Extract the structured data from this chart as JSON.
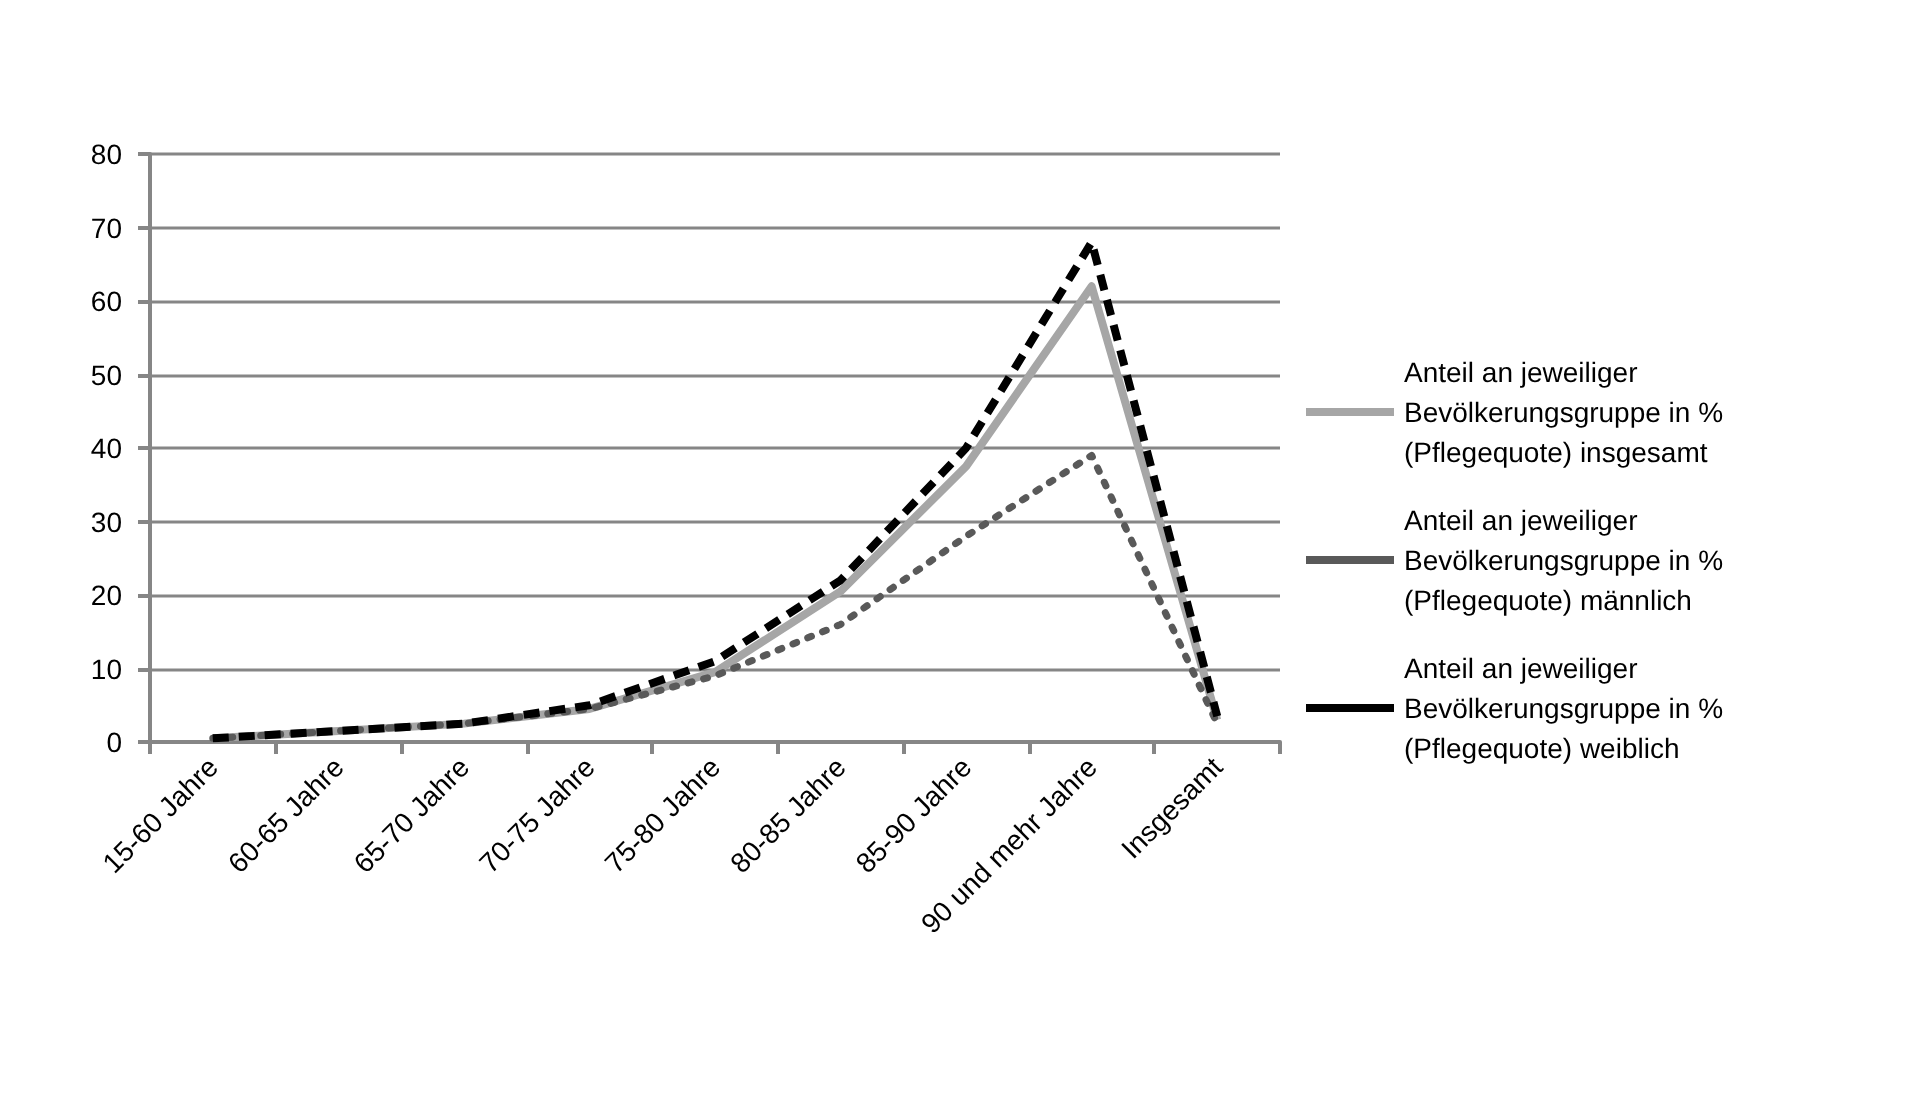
{
  "chart_data": {
    "type": "line",
    "categories": [
      "15-60 Jahre",
      "60-65 Jahre",
      "65-70 Jahre",
      "70-75 Jahre",
      "75-80 Jahre",
      "80-85 Jahre",
      "85-90 Jahre",
      "90 und mehr Jahre",
      "Insgesamt"
    ],
    "series": [
      {
        "name": "Anteil an jeweiliger Bevölkerungsgruppe in % (Pflegequote) insgesamt",
        "color": "#a6a6a6",
        "line_style": "solid",
        "values": [
          0.5,
          1.5,
          2.5,
          4.5,
          9.5,
          20.5,
          37.5,
          62,
          3
        ]
      },
      {
        "name": "Anteil an jeweiliger Bevölkerungsgruppe in % (Pflegequote) männlich",
        "color": "#595959",
        "line_style": "dotted",
        "values": [
          0.5,
          1.5,
          2.5,
          4.5,
          9,
          16,
          28,
          39,
          2.5
        ]
      },
      {
        "name": "Anteil an jeweiliger Bevölkerungsgruppe in % (Pflegequote) weiblich",
        "color": "#000000",
        "line_style": "dashed",
        "values": [
          0.5,
          1.5,
          2.5,
          5,
          11,
          22,
          40,
          68,
          3.5
        ]
      }
    ],
    "ylim": [
      0,
      80
    ],
    "yticks": [
      0,
      10,
      20,
      30,
      40,
      50,
      60,
      70,
      80
    ],
    "grid": "y",
    "legend": "right",
    "marker": "none"
  }
}
